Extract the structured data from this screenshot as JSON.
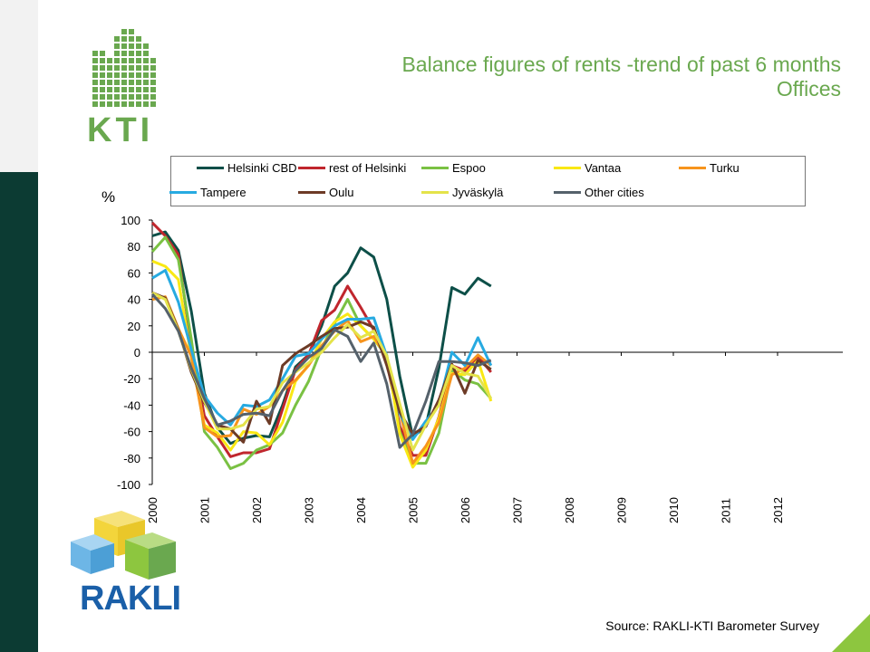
{
  "title": {
    "line1": "Balance figures of rents -trend of past 6 months",
    "line2": "Offices"
  },
  "logos": {
    "kti": "KTI",
    "rakli": "RAKLI"
  },
  "y_unit": "%",
  "source": "Source: RAKLI-KTI Barometer Survey",
  "colors": {
    "brand_green": "#6aa84f",
    "brand_dark": "#0c3b33"
  },
  "chart_data": {
    "type": "line",
    "title": "Balance figures of rents -trend of past 6 months",
    "subtitle": "Offices",
    "ylabel": "%",
    "ylim": [
      -100,
      100
    ],
    "yticks": [
      100,
      80,
      60,
      40,
      20,
      0,
      -20,
      -40,
      -60,
      -80,
      -100
    ],
    "x_tick_labels": [
      "2000",
      "2001",
      "2002",
      "2003",
      "2004",
      "2005",
      "2006",
      "2007",
      "2008",
      "2009",
      "2010",
      "2011",
      "2012"
    ],
    "x_start": 2000.0,
    "x_step": 0.25,
    "legend_placement": "top",
    "series": [
      {
        "name": "Helsinki CBD",
        "color": "#0d4f48",
        "values": [
          88,
          91,
          77,
          31,
          -31,
          -57,
          -69,
          -65,
          -63,
          -64,
          -40,
          -11,
          -2,
          20,
          50,
          60,
          79,
          72,
          40,
          -18,
          -64,
          -56,
          -12,
          49,
          44,
          56,
          50
        ]
      },
      {
        "name": "rest of Helsinki",
        "color": "#c0262d",
        "values": [
          98,
          88,
          74,
          5,
          -48,
          -64,
          -79,
          -76,
          -76,
          -73,
          -43,
          -13,
          -2,
          24,
          32,
          50,
          34,
          17,
          -7,
          -56,
          -78,
          -78,
          -49,
          -10,
          -14,
          -3,
          -15
        ]
      },
      {
        "name": "Espoo",
        "color": "#7ac143",
        "values": [
          76,
          87,
          70,
          10,
          -60,
          -72,
          -88,
          -84,
          -74,
          -70,
          -61,
          -40,
          -22,
          3,
          22,
          40,
          20,
          10,
          -3,
          -60,
          -84,
          -84,
          -61,
          -13,
          -21,
          -24,
          -35
        ]
      },
      {
        "name": "Vantaa",
        "color": "#f9e814",
        "values": [
          69,
          65,
          55,
          -4,
          -55,
          -61,
          -74,
          -60,
          -61,
          -70,
          -53,
          -22,
          -10,
          10,
          23,
          29,
          20,
          10,
          -2,
          -62,
          -87,
          -74,
          -50,
          -16,
          -17,
          -6,
          -37
        ]
      },
      {
        "name": "Turku",
        "color": "#f7941d",
        "values": [
          40,
          42,
          18,
          -3,
          -57,
          -64,
          -63,
          -43,
          -47,
          -41,
          -29,
          -21,
          -10,
          5,
          16,
          24,
          8,
          12,
          -4,
          -45,
          -84,
          -71,
          -53,
          -17,
          -12,
          -2,
          -10
        ]
      },
      {
        "name": "Tampere",
        "color": "#27aae1",
        "values": [
          56,
          62,
          38,
          2,
          -33,
          -46,
          -55,
          -40,
          -41,
          -36,
          -20,
          -3,
          -1,
          10,
          20,
          25,
          25,
          26,
          -3,
          -46,
          -66,
          -52,
          -40,
          0,
          -10,
          11,
          -10
        ]
      },
      {
        "name": "Oulu",
        "color": "#6d3b26",
        "values": [
          45,
          41,
          17,
          -15,
          -38,
          -55,
          -58,
          -68,
          -37,
          -54,
          -10,
          -1,
          5,
          12,
          18,
          19,
          23,
          19,
          -10,
          -45,
          -62,
          -56,
          -36,
          -9,
          -31,
          -6,
          -13
        ]
      },
      {
        "name": "Jyväskylä",
        "color": "#e4e34a",
        "values": [
          45,
          40,
          16,
          -13,
          -37,
          -58,
          -58,
          -55,
          -43,
          -41,
          -23,
          -15,
          -8,
          0,
          11,
          21,
          11,
          16,
          -3,
          -39,
          -74,
          -55,
          -40,
          -10,
          -16,
          -18,
          -35
        ]
      },
      {
        "name": "Other cities",
        "color": "#55616b",
        "values": [
          44,
          33,
          16,
          -12,
          -35,
          -55,
          -52,
          -47,
          -46,
          -48,
          -29,
          -14,
          -4,
          3,
          17,
          12,
          -7,
          7,
          -24,
          -72,
          -62,
          -37,
          -7,
          -7,
          -8,
          -10,
          -6
        ]
      }
    ]
  }
}
